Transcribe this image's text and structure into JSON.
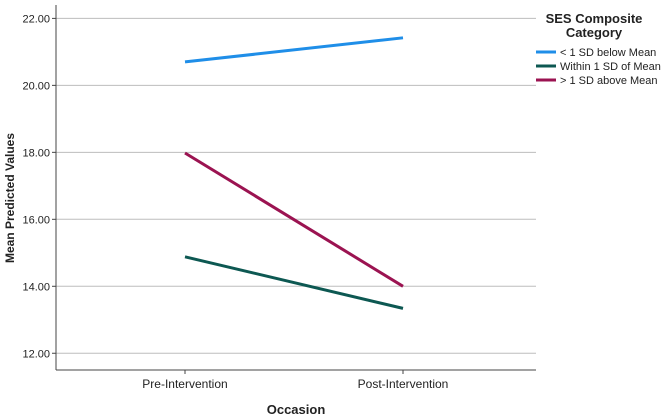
{
  "chart_data": {
    "type": "line",
    "title": "",
    "xlabel": "Occasion",
    "ylabel": "Mean Predicted Values",
    "categories": [
      "Pre-Intervention",
      "Post-Intervention"
    ],
    "ylim": [
      11.5,
      22.4
    ],
    "yticks": [
      "12.00",
      "14.00",
      "16.00",
      "18.00",
      "20.00",
      "22.00"
    ],
    "grid": true,
    "legend": {
      "title": [
        "SES Composite",
        "Category"
      ],
      "placement": "top-right"
    },
    "series": [
      {
        "name": "< 1 SD below Mean",
        "color": "#1f8ee8",
        "values": [
          20.7,
          21.42
        ]
      },
      {
        "name": "Within 1 SD of Mean",
        "color": "#0d5852",
        "values": [
          14.88,
          13.34
        ]
      },
      {
        "name": "> 1 SD above Mean",
        "color": "#9b1351",
        "values": [
          17.98,
          14.0
        ]
      }
    ]
  }
}
